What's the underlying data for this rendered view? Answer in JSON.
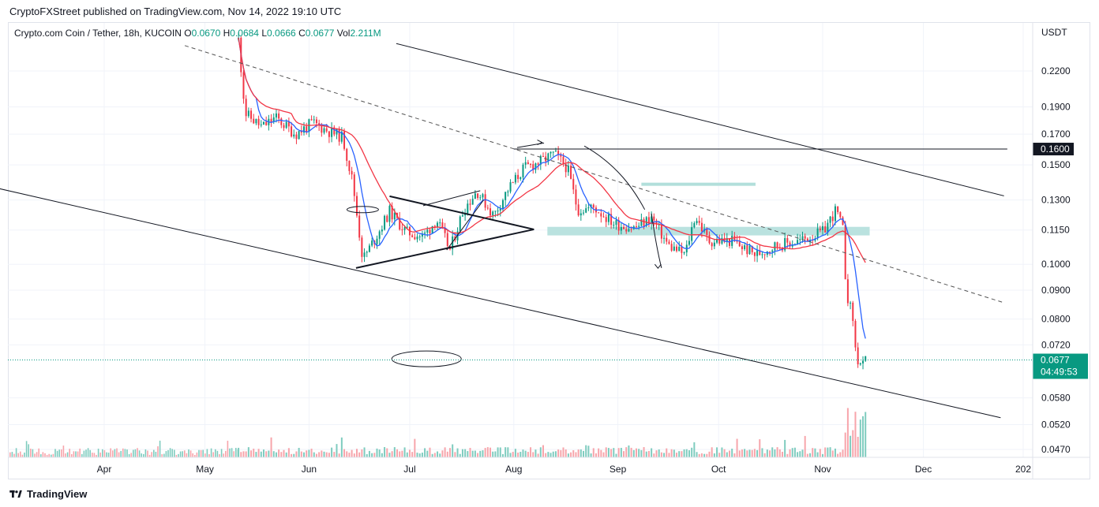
{
  "header": {
    "published": "CryptoFXStreet published on TradingView.com, Nov 14, 2022 19:10 UTC"
  },
  "legend": {
    "symbol": "Crypto.com Coin / Tether, 18h, KUCOIN",
    "o_label": "O",
    "o": "0.0670",
    "h_label": "H",
    "h": "0.0684",
    "l_label": "L",
    "l": "0.0666",
    "c_label": "C",
    "c": "0.0677",
    "vol_label": "Vol",
    "vol": "2.211M"
  },
  "footer": {
    "brand": "TradingView"
  },
  "colors": {
    "up": "#089981",
    "down": "#f23645",
    "ma_fast": "#2962ff",
    "ma_slow": "#f23645",
    "zone": "#b2dfdb"
  },
  "chart_data": {
    "type": "candlestick",
    "currency": "USDT",
    "y_ticks": [
      "0.2200",
      "0.1900",
      "0.1700",
      "0.1500",
      "0.1300",
      "0.1150",
      "0.1000",
      "0.0900",
      "0.0800",
      "0.0720",
      "0.0580",
      "0.0520",
      "0.0470"
    ],
    "x_ticks": [
      "Apr",
      "May",
      "Jun",
      "Jul",
      "Aug",
      "Sep",
      "Oct",
      "Nov",
      "Dec",
      "202"
    ],
    "price_labels": {
      "level": "0.1600",
      "current": "0.0677",
      "countdown": "04:49:53"
    },
    "price_path": [
      [
        "2022-05-11",
        0.25
      ],
      [
        "2022-05-13",
        0.185
      ],
      [
        "2022-05-18",
        0.175
      ],
      [
        "2022-05-22",
        0.182
      ],
      [
        "2022-05-28",
        0.17
      ],
      [
        "2022-06-02",
        0.178
      ],
      [
        "2022-06-07",
        0.172
      ],
      [
        "2022-06-11",
        0.168
      ],
      [
        "2022-06-14",
        0.14
      ],
      [
        "2022-06-17",
        0.102
      ],
      [
        "2022-06-21",
        0.112
      ],
      [
        "2022-06-25",
        0.124
      ],
      [
        "2022-06-30",
        0.114
      ],
      [
        "2022-07-05",
        0.112
      ],
      [
        "2022-07-09",
        0.12
      ],
      [
        "2022-07-13",
        0.106
      ],
      [
        "2022-07-17",
        0.125
      ],
      [
        "2022-07-21",
        0.135
      ],
      [
        "2022-07-26",
        0.122
      ],
      [
        "2022-07-30",
        0.135
      ],
      [
        "2022-08-04",
        0.148
      ],
      [
        "2022-08-09",
        0.152
      ],
      [
        "2022-08-13",
        0.157
      ],
      [
        "2022-08-17",
        0.148
      ],
      [
        "2022-08-20",
        0.125
      ],
      [
        "2022-08-25",
        0.126
      ],
      [
        "2022-08-31",
        0.118
      ],
      [
        "2022-09-06",
        0.116
      ],
      [
        "2022-09-11",
        0.121
      ],
      [
        "2022-09-16",
        0.108
      ],
      [
        "2022-09-21",
        0.104
      ],
      [
        "2022-09-24",
        0.122
      ],
      [
        "2022-09-28",
        0.11
      ],
      [
        "2022-10-05",
        0.11
      ],
      [
        "2022-10-12",
        0.104
      ],
      [
        "2022-10-18",
        0.108
      ],
      [
        "2022-10-25",
        0.11
      ],
      [
        "2022-11-01",
        0.114
      ],
      [
        "2022-11-05",
        0.125
      ],
      [
        "2022-11-07",
        0.115
      ],
      [
        "2022-11-08",
        0.09
      ],
      [
        "2022-11-10",
        0.08
      ],
      [
        "2022-11-11",
        0.068
      ],
      [
        "2022-11-13",
        0.066
      ],
      [
        "2022-11-14",
        0.0677
      ]
    ]
  }
}
